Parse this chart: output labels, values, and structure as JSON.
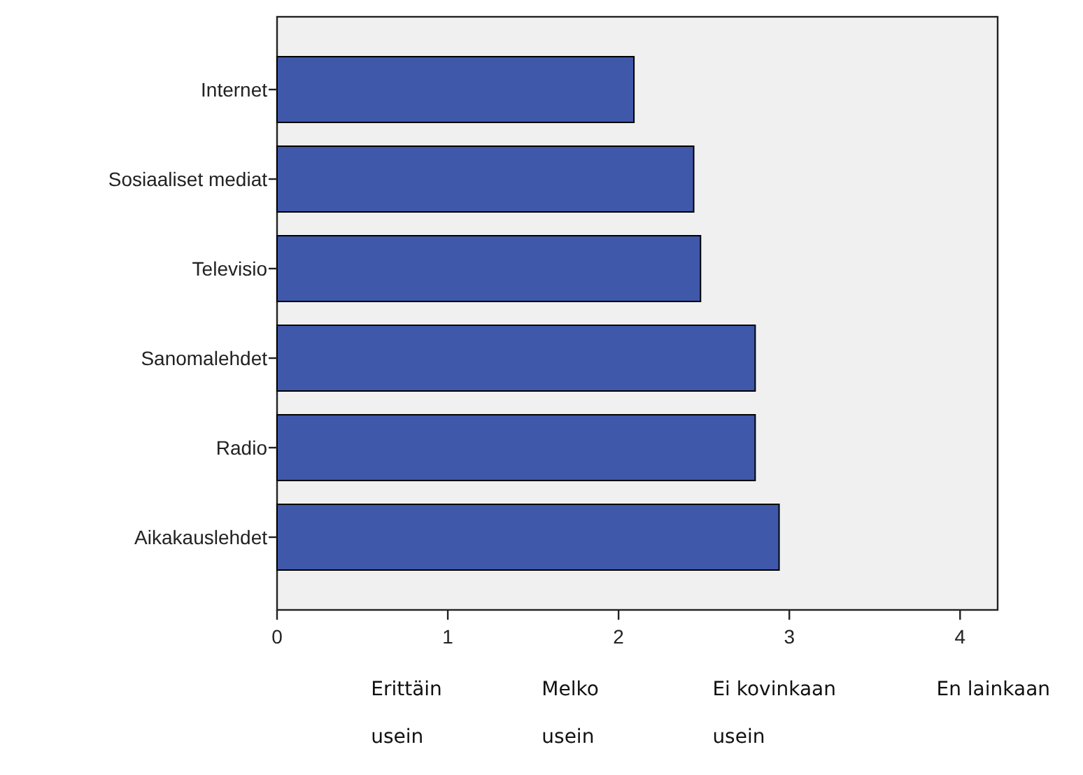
{
  "chart_data": {
    "type": "bar",
    "orientation": "horizontal",
    "categories": [
      "Internet",
      "Sosiaaliset mediat",
      "Televisio",
      "Sanomalehdet",
      "Radio",
      "Aikakauslehdet"
    ],
    "values": [
      2.09,
      2.44,
      2.48,
      2.8,
      2.8,
      2.94
    ],
    "color": "#3f58aa",
    "xlim": [
      0,
      4.22
    ],
    "xticks": [
      0,
      1,
      2,
      3,
      4
    ],
    "grid": false,
    "annotations": [
      "Erittäin usein",
      "Melko usein",
      "Ei kovinkaan usein",
      "En lainkaan"
    ]
  }
}
